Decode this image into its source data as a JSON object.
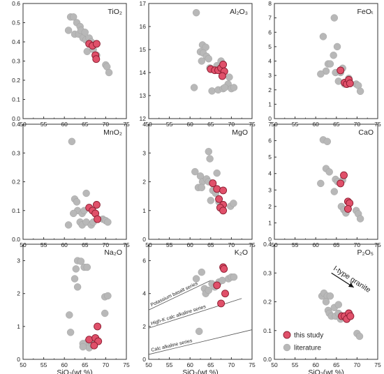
{
  "colors": {
    "this_study": "#e0506a",
    "this_study_edge": "#8a1c30",
    "literature": "#b8b8b8",
    "axis": "#333333"
  },
  "legend": {
    "placement": "inside bottom-right of P2O5 panel",
    "items": [
      {
        "label": "this study",
        "marker": "red-circle"
      },
      {
        "label": "literature",
        "marker": "gray-circle"
      }
    ]
  },
  "chart_data": [
    {
      "type": "scatter",
      "title": "TiO₂",
      "xlabel": "",
      "xlim": [
        50,
        75
      ],
      "ylim": [
        0.0,
        0.6
      ],
      "xticks": [
        "50",
        "55",
        "60",
        "65",
        "70",
        "75"
      ],
      "yticks": [
        "0.0",
        "0.1",
        "0.2",
        "0.3",
        "0.4",
        "0.5",
        "0.6"
      ],
      "series": [
        {
          "key": "literature",
          "points": [
            [
              61.5,
              0.53
            ],
            [
              62.2,
              0.53
            ],
            [
              63.0,
              0.5
            ],
            [
              63.8,
              0.48
            ],
            [
              61.0,
              0.46
            ],
            [
              62.5,
              0.44
            ],
            [
              63.5,
              0.44
            ],
            [
              64.5,
              0.42
            ],
            [
              65.2,
              0.41
            ],
            [
              66.0,
              0.42
            ],
            [
              66.5,
              0.4
            ],
            [
              65.5,
              0.35
            ],
            [
              67.0,
              0.36
            ],
            [
              67.8,
              0.33
            ],
            [
              70.0,
              0.28
            ],
            [
              70.3,
              0.27
            ],
            [
              70.8,
              0.24
            ],
            [
              64.0,
              0.46
            ],
            [
              65.0,
              0.45
            ]
          ]
        },
        {
          "key": "this_study",
          "points": [
            [
              66.0,
              0.39
            ],
            [
              66.8,
              0.38
            ],
            [
              67.8,
              0.39
            ],
            [
              67.5,
              0.33
            ],
            [
              67.7,
              0.31
            ]
          ]
        }
      ]
    },
    {
      "type": "scatter",
      "title": "Al₂O₃",
      "xlabel": "",
      "xlim": [
        50,
        75
      ],
      "ylim": [
        12,
        17
      ],
      "xticks": [
        "50",
        "55",
        "60",
        "65",
        "70",
        "75"
      ],
      "yticks": [
        "12",
        "13",
        "14",
        "15",
        "16",
        "17"
      ],
      "series": [
        {
          "key": "literature",
          "points": [
            [
              61.5,
              16.6
            ],
            [
              63.0,
              15.2
            ],
            [
              63.8,
              15.1
            ],
            [
              62.5,
              14.9
            ],
            [
              63.2,
              14.85
            ],
            [
              64.0,
              14.7
            ],
            [
              64.5,
              14.6
            ],
            [
              62.8,
              14.5
            ],
            [
              64.8,
              14.2
            ],
            [
              66.5,
              14.3
            ],
            [
              67.5,
              14.5
            ],
            [
              69.5,
              13.8
            ],
            [
              69.2,
              13.5
            ],
            [
              70.0,
              13.3
            ],
            [
              70.6,
              13.35
            ],
            [
              61.0,
              13.35
            ],
            [
              65.3,
              13.2
            ],
            [
              66.8,
              13.25
            ],
            [
              68.0,
              13.3
            ],
            [
              68.4,
              13.35
            ]
          ]
        },
        {
          "key": "this_study",
          "points": [
            [
              65.0,
              14.15
            ],
            [
              66.0,
              14.1
            ],
            [
              66.8,
              14.1
            ],
            [
              67.5,
              14.2
            ],
            [
              68.0,
              14.35
            ],
            [
              68.3,
              14.05
            ],
            [
              67.8,
              13.85
            ]
          ]
        }
      ]
    },
    {
      "type": "scatter",
      "title": "FeOₜ",
      "xlabel": "",
      "xlim": [
        50,
        75
      ],
      "ylim": [
        0,
        8
      ],
      "xticks": [
        "50",
        "55",
        "60",
        "65",
        "70",
        "75"
      ],
      "yticks": [
        "0",
        "1",
        "2",
        "3",
        "4",
        "5",
        "6",
        "7",
        "8"
      ],
      "series": [
        {
          "key": "literature",
          "points": [
            [
              64.5,
              7.0
            ],
            [
              61.8,
              5.7
            ],
            [
              65.2,
              5.0
            ],
            [
              64.3,
              4.4
            ],
            [
              63.0,
              3.8
            ],
            [
              63.5,
              3.8
            ],
            [
              62.5,
              3.3
            ],
            [
              61.2,
              3.1
            ],
            [
              64.8,
              3.2
            ],
            [
              66.0,
              3.2
            ],
            [
              66.5,
              3.5
            ],
            [
              65.5,
              2.6
            ],
            [
              67.0,
              2.4
            ],
            [
              68.0,
              2.8
            ],
            [
              69.8,
              2.4
            ],
            [
              70.3,
              2.3
            ],
            [
              70.8,
              1.9
            ]
          ]
        },
        {
          "key": "this_study",
          "points": [
            [
              66.0,
              3.35
            ],
            [
              67.0,
              2.5
            ],
            [
              67.5,
              2.4
            ],
            [
              68.0,
              2.7
            ],
            [
              68.3,
              2.45
            ]
          ]
        }
      ]
    },
    {
      "type": "scatter",
      "title": "MnO₂",
      "xlabel": "",
      "xlim": [
        50,
        75
      ],
      "ylim": [
        0.0,
        0.4
      ],
      "xticks": [
        "50",
        "55",
        "60",
        "65",
        "70",
        "75"
      ],
      "yticks": [
        "0.0",
        "0.1",
        "0.2",
        "0.3",
        "0.4"
      ],
      "series": [
        {
          "key": "literature",
          "points": [
            [
              61.8,
              0.34
            ],
            [
              62.5,
              0.14
            ],
            [
              63.0,
              0.13
            ],
            [
              65.3,
              0.16
            ],
            [
              63.2,
              0.1
            ],
            [
              62.2,
              0.09
            ],
            [
              64.3,
              0.09
            ],
            [
              64.8,
              0.1
            ],
            [
              61.0,
              0.05
            ],
            [
              63.8,
              0.06
            ],
            [
              64.3,
              0.05
            ],
            [
              65.3,
              0.06
            ],
            [
              66.5,
              0.05
            ],
            [
              67.0,
              0.06
            ],
            [
              69.3,
              0.07
            ],
            [
              70.0,
              0.065
            ],
            [
              70.5,
              0.06
            ]
          ]
        },
        {
          "key": "this_study",
          "points": [
            [
              66.0,
              0.11
            ],
            [
              66.8,
              0.1
            ],
            [
              67.8,
              0.12
            ],
            [
              67.5,
              0.09
            ],
            [
              68.0,
              0.07
            ]
          ]
        }
      ]
    },
    {
      "type": "scatter",
      "title": "MgO",
      "xlabel": "",
      "xlim": [
        50,
        75
      ],
      "ylim": [
        0,
        4
      ],
      "xticks": [
        "50",
        "55",
        "60",
        "65",
        "70",
        "75"
      ],
      "yticks": [
        "0",
        "1",
        "2",
        "3",
        "4"
      ],
      "series": [
        {
          "key": "literature",
          "points": [
            [
              61.2,
              2.35
            ],
            [
              62.5,
              2.2
            ],
            [
              64.5,
              3.05
            ],
            [
              64.8,
              2.8
            ],
            [
              63.0,
              2.0
            ],
            [
              64.0,
              2.1
            ],
            [
              64.5,
              2.0
            ],
            [
              62.0,
              1.8
            ],
            [
              62.8,
              1.8
            ],
            [
              66.5,
              2.3
            ],
            [
              65.5,
              1.7
            ],
            [
              66.2,
              1.6
            ],
            [
              65.0,
              1.35
            ],
            [
              67.0,
              1.3
            ],
            [
              69.8,
              1.15
            ],
            [
              70.5,
              1.25
            ]
          ]
        },
        {
          "key": "this_study",
          "points": [
            [
              65.5,
              1.95
            ],
            [
              66.5,
              1.75
            ],
            [
              68.0,
              1.7
            ],
            [
              67.0,
              1.4
            ],
            [
              68.0,
              1.2
            ],
            [
              67.3,
              1.1
            ],
            [
              68.0,
              1.0
            ]
          ]
        }
      ]
    },
    {
      "type": "scatter",
      "title": "CaO",
      "xlabel": "",
      "xlim": [
        50,
        75
      ],
      "ylim": [
        0,
        7
      ],
      "xticks": [
        "50",
        "55",
        "60",
        "65",
        "70",
        "75"
      ],
      "yticks": [
        "0",
        "1",
        "2",
        "3",
        "4",
        "5",
        "6",
        "7"
      ],
      "series": [
        {
          "key": "literature",
          "points": [
            [
              61.8,
              6.05
            ],
            [
              62.8,
              5.95
            ],
            [
              62.5,
              4.3
            ],
            [
              63.3,
              4.1
            ],
            [
              64.8,
              3.65
            ],
            [
              65.3,
              3.5
            ],
            [
              66.5,
              3.6
            ],
            [
              61.2,
              3.4
            ],
            [
              64.5,
              2.9
            ],
            [
              66.2,
              2.0
            ],
            [
              66.8,
              1.8
            ],
            [
              67.3,
              1.6
            ],
            [
              69.8,
              1.75
            ],
            [
              70.3,
              1.55
            ],
            [
              70.8,
              1.25
            ]
          ]
        },
        {
          "key": "this_study",
          "points": [
            [
              66.8,
              3.9
            ],
            [
              66.0,
              3.4
            ],
            [
              67.8,
              2.3
            ],
            [
              68.2,
              2.2
            ],
            [
              67.8,
              1.85
            ]
          ]
        }
      ]
    },
    {
      "type": "scatter",
      "title": "Na₂O",
      "xlabel": "SiO₂(wt.%)",
      "xlim": [
        50,
        75
      ],
      "ylim": [
        0,
        3.5
      ],
      "xticks": [
        "50",
        "55",
        "60",
        "65",
        "70",
        "75"
      ],
      "yticks": [
        "0",
        "1",
        "2",
        "3"
      ],
      "series": [
        {
          "key": "literature",
          "points": [
            [
              63.2,
              3.0
            ],
            [
              64.0,
              2.98
            ],
            [
              64.8,
              2.8
            ],
            [
              65.5,
              2.8
            ],
            [
              62.8,
              2.75
            ],
            [
              62.5,
              2.45
            ],
            [
              63.2,
              2.2
            ],
            [
              61.2,
              1.35
            ],
            [
              61.5,
              0.82
            ],
            [
              69.8,
              1.9
            ],
            [
              70.5,
              1.93
            ],
            [
              69.8,
              1.4
            ],
            [
              65.5,
              0.52
            ],
            [
              66.0,
              0.35
            ],
            [
              66.8,
              0.45
            ],
            [
              64.5,
              0.48
            ],
            [
              64.5,
              0.38
            ]
          ]
        },
        {
          "key": "this_study",
          "points": [
            [
              68.0,
              1.0
            ],
            [
              66.0,
              0.6
            ],
            [
              67.5,
              0.65
            ],
            [
              68.2,
              0.55
            ],
            [
              67.2,
              0.42
            ]
          ]
        }
      ]
    },
    {
      "type": "scatter",
      "title": "K₂O",
      "xlabel": "SiO₂(wt.%)",
      "xlim": [
        50,
        75
      ],
      "ylim": [
        0,
        7
      ],
      "xticks": [
        "50",
        "55",
        "60",
        "65",
        "70",
        "75"
      ],
      "yticks": [
        "0",
        "2",
        "4",
        "6"
      ],
      "series": [
        {
          "key": "literature",
          "points": [
            [
              61.5,
              4.9
            ],
            [
              62.8,
              5.3
            ],
            [
              63.5,
              4.3
            ],
            [
              63.8,
              4.0
            ],
            [
              64.5,
              4.2
            ],
            [
              65.3,
              4.6
            ],
            [
              66.0,
              4.4
            ],
            [
              67.0,
              4.7
            ],
            [
              67.8,
              4.8
            ],
            [
              69.3,
              4.9
            ],
            [
              70.0,
              5.0
            ],
            [
              70.6,
              5.0
            ],
            [
              62.2,
              1.7
            ]
          ]
        },
        {
          "key": "this_study",
          "points": [
            [
              68.0,
              5.6
            ],
            [
              68.2,
              5.5
            ],
            [
              66.5,
              4.5
            ],
            [
              68.5,
              4.0
            ],
            [
              67.5,
              3.4
            ]
          ]
        }
      ],
      "reference_lines": [
        {
          "label": "Potassium basalt series",
          "from": [
            50,
            3.0
          ],
          "to": [
            65,
            4.8
          ]
        },
        {
          "label": "High-K calc alkaline series",
          "from": [
            50,
            1.9
          ],
          "to": [
            72.5,
            3.7
          ]
        },
        {
          "label": "Calc alkaline series",
          "from": [
            50,
            0.3
          ],
          "to": [
            75,
            1.8
          ]
        }
      ]
    },
    {
      "type": "scatter",
      "title": "P₂O₅",
      "xlabel": "SiO₂(wt.%)",
      "xlim": [
        50,
        75
      ],
      "ylim": [
        0.0,
        0.4
      ],
      "xticks": [
        "50",
        "55",
        "60",
        "65",
        "70",
        "75"
      ],
      "yticks": [
        "0.0",
        "0.1",
        "0.2",
        "0.3",
        "0.4"
      ],
      "series": [
        {
          "key": "literature",
          "points": [
            [
              61.5,
              0.22
            ],
            [
              62.0,
              0.23
            ],
            [
              62.8,
              0.22
            ],
            [
              63.5,
              0.22
            ],
            [
              62.5,
              0.2
            ],
            [
              63.0,
              0.17
            ],
            [
              64.5,
              0.18
            ],
            [
              65.5,
              0.19
            ],
            [
              63.3,
              0.16
            ],
            [
              63.8,
              0.15
            ],
            [
              64.8,
              0.15
            ],
            [
              65.5,
              0.16
            ],
            [
              66.3,
              0.15
            ],
            [
              66.0,
              0.14
            ],
            [
              70.0,
              0.09
            ],
            [
              70.6,
              0.08
            ]
          ]
        },
        {
          "key": "this_study",
          "points": [
            [
              66.3,
              0.15
            ],
            [
              67.0,
              0.15
            ],
            [
              67.5,
              0.14
            ],
            [
              68.0,
              0.16
            ],
            [
              68.4,
              0.15
            ]
          ]
        }
      ],
      "arrow": {
        "label": "I-type granite",
        "from": [
          63.8,
          0.3
        ],
        "to": [
          69.2,
          0.25
        ]
      }
    }
  ]
}
